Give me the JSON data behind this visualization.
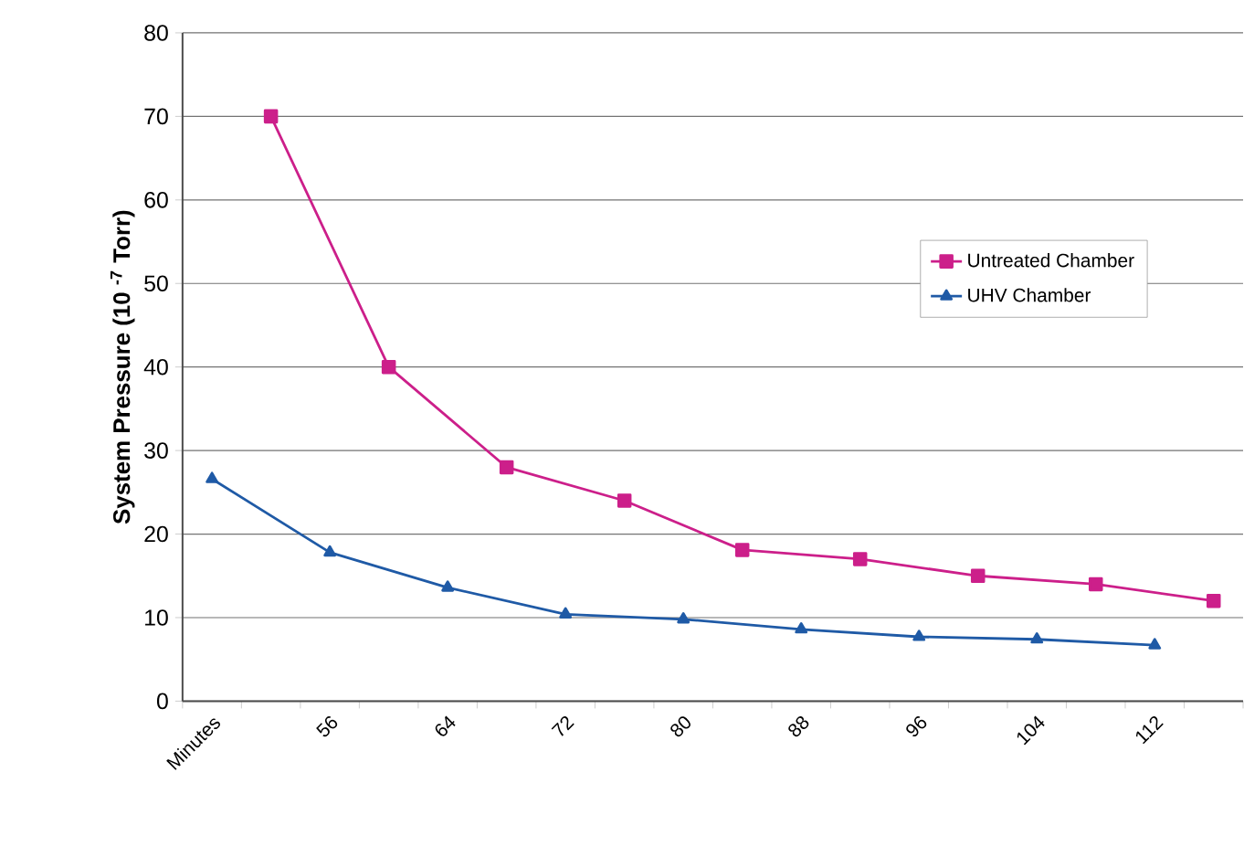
{
  "chart_data": {
    "type": "line",
    "ylabel": "System Pressure (10 $^{-7}$ Torr)",
    "categories": [
      "Minutes",
      null,
      "56",
      null,
      "64",
      null,
      "72",
      null,
      "80",
      null,
      "88",
      null,
      "96",
      null,
      "104",
      null,
      "112",
      null
    ],
    "series": [
      {
        "name": "Untreated Chamber",
        "color": "#cc1f8a",
        "marker": "square",
        "values": [
          null,
          70,
          null,
          40,
          null,
          28,
          null,
          24,
          null,
          18.1,
          null,
          17,
          null,
          15,
          null,
          14,
          null,
          12
        ]
      },
      {
        "name": "UHV Chamber",
        "color": "#1f5aa6",
        "marker": "triangle",
        "values": [
          26.6,
          null,
          17.8,
          null,
          13.6,
          null,
          10.4,
          null,
          9.8,
          null,
          8.6,
          null,
          7.7,
          null,
          7.4,
          null,
          6.7,
          null
        ]
      }
    ],
    "ylim": [
      0,
      80
    ],
    "yticks": [
      0,
      10,
      20,
      30,
      40,
      50,
      60,
      70,
      80
    ],
    "grid": "y",
    "legend": "right"
  }
}
